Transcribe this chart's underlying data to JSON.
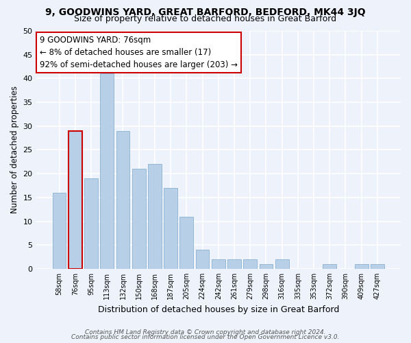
{
  "title1": "9, GOODWINS YARD, GREAT BARFORD, BEDFORD, MK44 3JQ",
  "title2": "Size of property relative to detached houses in Great Barford",
  "xlabel": "Distribution of detached houses by size in Great Barford",
  "ylabel": "Number of detached properties",
  "footer1": "Contains HM Land Registry data © Crown copyright and database right 2024.",
  "footer2": "Contains public sector information licensed under the Open Government Licence v3.0.",
  "annotation_title": "9 GOODWINS YARD: 76sqm",
  "annotation_line1": "← 8% of detached houses are smaller (17)",
  "annotation_line2": "92% of semi-detached houses are larger (203) →",
  "bins": [
    "58sqm",
    "76sqm",
    "95sqm",
    "113sqm",
    "132sqm",
    "150sqm",
    "168sqm",
    "187sqm",
    "205sqm",
    "224sqm",
    "242sqm",
    "261sqm",
    "279sqm",
    "298sqm",
    "316sqm",
    "335sqm",
    "353sqm",
    "372sqm",
    "390sqm",
    "409sqm",
    "427sqm"
  ],
  "values": [
    16,
    29,
    19,
    41,
    29,
    21,
    22,
    17,
    11,
    4,
    2,
    2,
    2,
    1,
    2,
    0,
    0,
    1,
    0,
    1,
    1
  ],
  "highlight_bin": 1,
  "bar_color": "#b8cfe8",
  "highlight_color": "#b8cfe8",
  "bar_edge_color": "#7aa8cc",
  "highlight_edge_color": "#cc0000",
  "bg_color": "#eef2fa",
  "grid_color": "#ffffff",
  "ylim": [
    0,
    50
  ],
  "yticks": [
    0,
    5,
    10,
    15,
    20,
    25,
    30,
    35,
    40,
    45,
    50
  ],
  "annotation_box_color": "#ffffff",
  "annotation_box_edge": "#cc0000",
  "title1_fontsize": 10,
  "title2_fontsize": 9
}
